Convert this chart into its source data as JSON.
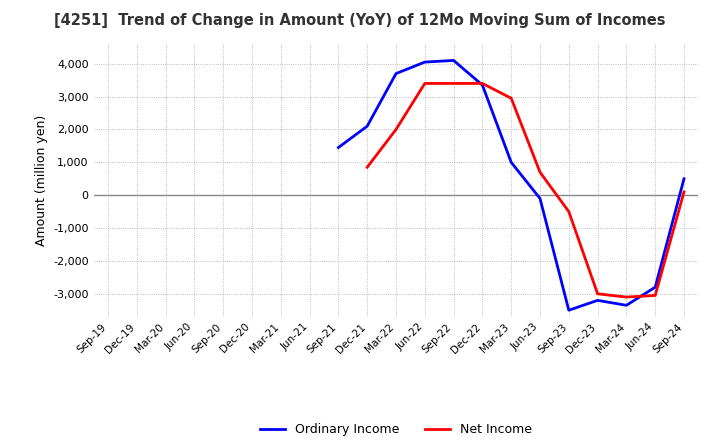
{
  "title": "[4251]  Trend of Change in Amount (YoY) of 12Mo Moving Sum of Incomes",
  "ylabel": "Amount (million yen)",
  "background_color": "#ffffff",
  "plot_background_color": "#ffffff",
  "grid_color": "#aaaaaa",
  "x_labels": [
    "Sep-19",
    "Dec-19",
    "Mar-20",
    "Jun-20",
    "Sep-20",
    "Dec-20",
    "Mar-21",
    "Jun-21",
    "Sep-21",
    "Dec-21",
    "Mar-22",
    "Jun-22",
    "Sep-22",
    "Dec-22",
    "Mar-23",
    "Jun-23",
    "Sep-23",
    "Dec-23",
    "Mar-24",
    "Jun-24",
    "Sep-24"
  ],
  "ordinary_income": [
    null,
    null,
    null,
    null,
    null,
    null,
    null,
    null,
    1450,
    2100,
    3700,
    4050,
    4100,
    3350,
    1000,
    -100,
    -3500,
    -3200,
    -3350,
    -2800,
    500
  ],
  "net_income": [
    null,
    null,
    null,
    null,
    null,
    null,
    null,
    null,
    null,
    850,
    2000,
    3400,
    3400,
    3400,
    2950,
    700,
    -500,
    -3000,
    -3100,
    -3050,
    100
  ],
  "ylim": [
    -3700,
    4600
  ],
  "yticks": [
    -3000,
    -2000,
    -1000,
    0,
    1000,
    2000,
    3000,
    4000
  ],
  "ordinary_color": "#0000ff",
  "net_color": "#ff0000",
  "line_width": 2.0,
  "zero_line_color": "#888888"
}
